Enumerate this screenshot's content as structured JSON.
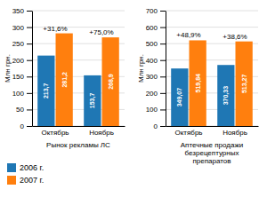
{
  "chart_data": [
    {
      "type": "bar",
      "title": "Рынок рекламы ЛС",
      "ylabel": "Млн грн.",
      "categories": [
        "Октябрь",
        "Ноябрь"
      ],
      "series": [
        {
          "name": "2006 г.",
          "values": [
            213.7,
            153.7
          ],
          "value_labels": [
            "213,7",
            "153,7"
          ]
        },
        {
          "name": "2007 г.",
          "values": [
            281.2,
            268.9
          ],
          "value_labels": [
            "281,2",
            "268,9"
          ]
        }
      ],
      "annotations": [
        "+31,6%",
        "+75,0%"
      ],
      "ylim": [
        0,
        350
      ],
      "yticks": [
        0,
        50,
        100,
        150,
        200,
        250,
        300,
        350
      ],
      "grid": true,
      "data_labels": true,
      "legend": "lower-left"
    },
    {
      "type": "bar",
      "title": "Аптечные продажи\nбезрецептурных\nпрепаратов",
      "ylabel": "Млн грн.",
      "categories": [
        "Октябрь",
        "Ноябрь"
      ],
      "series": [
        {
          "name": "2006 г.",
          "values": [
            349.07,
            370.33
          ],
          "value_labels": [
            "349,07",
            "370,33"
          ]
        },
        {
          "name": "2007 г.",
          "values": [
            519.84,
            513.27
          ],
          "value_labels": [
            "519,84",
            "513,27"
          ]
        }
      ],
      "annotations": [
        "+48,9%",
        "+38,6%"
      ],
      "ylim": [
        0,
        700
      ],
      "yticks": [
        0,
        100,
        200,
        300,
        400,
        500,
        600,
        700
      ],
      "grid": true,
      "data_labels": true
    }
  ]
}
